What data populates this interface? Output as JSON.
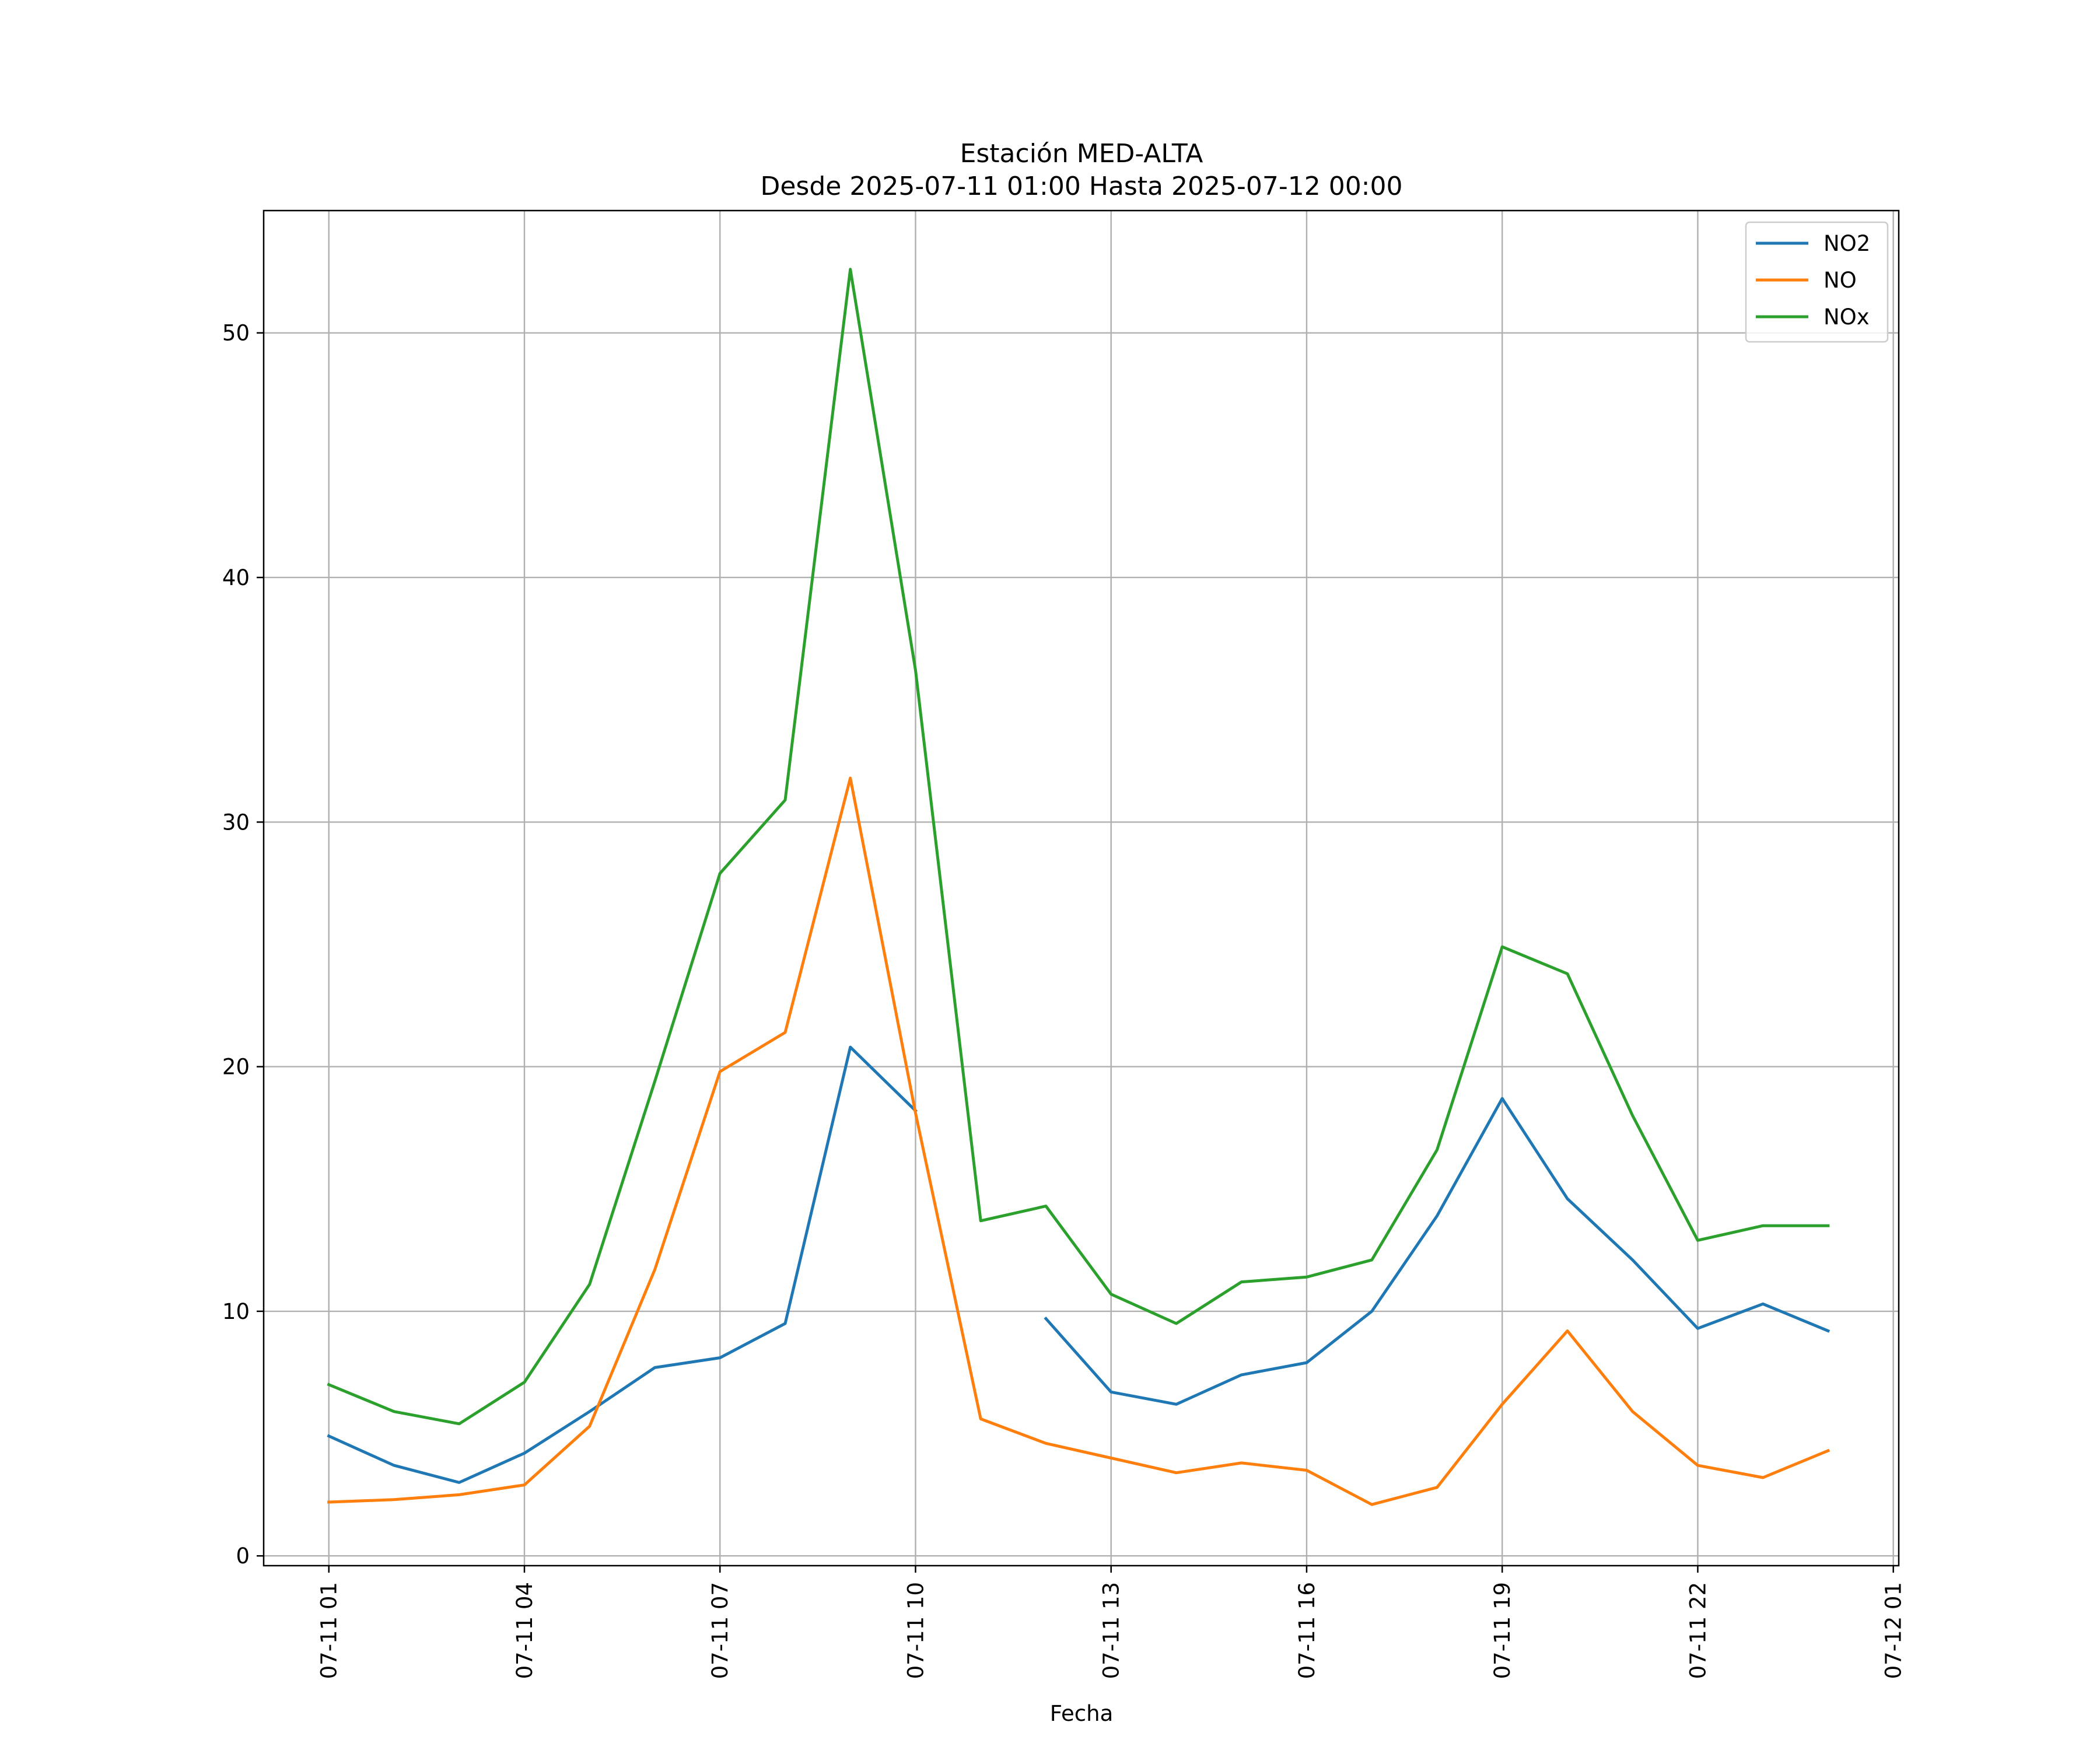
{
  "chart_data": {
    "type": "line",
    "title": "Estación MED-ALTA",
    "subtitle": "Desde 2025-07-11 01:00 Hasta 2025-07-12 00:00",
    "xlabel": "Fecha",
    "ylabel": "",
    "x": [
      "2025-07-11 01:00",
      "2025-07-11 02:00",
      "2025-07-11 03:00",
      "2025-07-11 04:00",
      "2025-07-11 05:00",
      "2025-07-11 06:00",
      "2025-07-11 07:00",
      "2025-07-11 08:00",
      "2025-07-11 09:00",
      "2025-07-11 10:00",
      "2025-07-11 11:00",
      "2025-07-11 12:00",
      "2025-07-11 13:00",
      "2025-07-11 14:00",
      "2025-07-11 15:00",
      "2025-07-11 16:00",
      "2025-07-11 17:00",
      "2025-07-11 18:00",
      "2025-07-11 19:00",
      "2025-07-11 20:00",
      "2025-07-11 21:00",
      "2025-07-11 22:00",
      "2025-07-11 23:00",
      "2025-07-12 00:00"
    ],
    "xlim": [
      "2025-07-11 00:00",
      "2025-07-12 01:05"
    ],
    "xticks": [
      "07-11 01",
      "07-11 04",
      "07-11 07",
      "07-11 10",
      "07-11 13",
      "07-11 16",
      "07-11 19",
      "07-11 22",
      "07-12 01"
    ],
    "ylim": [
      -0.4,
      55
    ],
    "yticks": [
      0,
      10,
      20,
      30,
      40,
      50
    ],
    "grid": true,
    "legend_position": "upper right",
    "series": [
      {
        "name": "NO2",
        "color": "#1f77b4",
        "values": [
          4.9,
          3.7,
          3.0,
          4.2,
          5.9,
          7.7,
          8.1,
          9.5,
          20.8,
          18.2,
          null,
          9.7,
          6.7,
          6.2,
          7.4,
          7.9,
          10.0,
          13.9,
          18.7,
          14.6,
          12.1,
          9.3,
          10.3,
          9.2
        ]
      },
      {
        "name": "NO",
        "color": "#ff7f0e",
        "values": [
          2.2,
          2.3,
          2.5,
          2.9,
          5.3,
          11.7,
          19.8,
          21.4,
          31.8,
          18.1,
          5.6,
          4.6,
          4.0,
          3.4,
          3.8,
          3.5,
          2.1,
          2.8,
          6.2,
          9.2,
          5.9,
          3.7,
          3.2,
          4.3
        ]
      },
      {
        "name": "NOx",
        "color": "#2ca02c",
        "values": [
          7.0,
          5.9,
          5.4,
          7.1,
          11.1,
          19.4,
          27.9,
          30.9,
          52.6,
          36.2,
          13.7,
          14.3,
          10.7,
          9.5,
          11.2,
          11.4,
          12.1,
          16.6,
          24.9,
          23.8,
          18.0,
          12.9,
          13.5,
          13.5
        ]
      }
    ]
  }
}
